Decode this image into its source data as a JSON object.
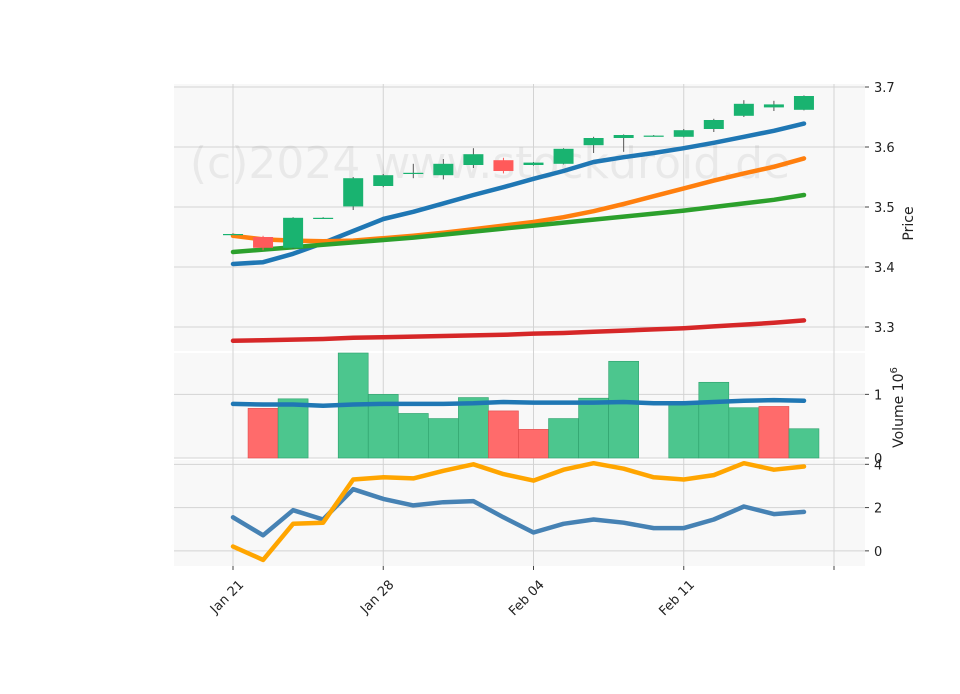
{
  "watermark": "(c)2024 www.stockdroid.de",
  "colors": {
    "up": "#19b370",
    "down": "#ff5a5a",
    "vol_up": "#4cc68e",
    "vol_down": "#ff6b6b",
    "panel_bg": "#f8f8f8",
    "grid": "#d3d3d3"
  },
  "chart_data": [
    {
      "type": "candlestick",
      "panel": "price",
      "ylabel": "Price",
      "ylim": [
        3.26,
        3.705
      ],
      "yticks": [
        "3.3",
        "3.4",
        "3.5",
        "3.6",
        "3.7"
      ],
      "grid": true,
      "x_tick_labels": [
        "Jan 21",
        "Jan 28",
        "Feb 04",
        "Feb 11"
      ],
      "x_tick_indices": [
        0,
        5,
        10,
        15
      ],
      "candles": [
        {
          "o": 3.455,
          "h": 3.456,
          "l": 3.454,
          "c": 3.455
        },
        {
          "o": 3.45,
          "h": 3.452,
          "l": 3.428,
          "c": 3.432
        },
        {
          "o": 3.432,
          "h": 3.483,
          "l": 3.43,
          "c": 3.482
        },
        {
          "o": 3.482,
          "h": 3.483,
          "l": 3.481,
          "c": 3.482
        },
        {
          "o": 3.501,
          "h": 3.55,
          "l": 3.495,
          "c": 3.548
        },
        {
          "o": 3.535,
          "h": 3.555,
          "l": 3.533,
          "c": 3.553
        },
        {
          "o": 3.555,
          "h": 3.572,
          "l": 3.548,
          "c": 3.557
        },
        {
          "o": 3.553,
          "h": 3.58,
          "l": 3.546,
          "c": 3.572
        },
        {
          "o": 3.57,
          "h": 3.598,
          "l": 3.565,
          "c": 3.588
        },
        {
          "o": 3.578,
          "h": 3.582,
          "l": 3.556,
          "c": 3.56
        },
        {
          "o": 3.57,
          "h": 3.575,
          "l": 3.569,
          "c": 3.574
        },
        {
          "o": 3.572,
          "h": 3.598,
          "l": 3.571,
          "c": 3.597
        },
        {
          "o": 3.603,
          "h": 3.617,
          "l": 3.59,
          "c": 3.615
        },
        {
          "o": 3.615,
          "h": 3.621,
          "l": 3.592,
          "c": 3.62
        },
        {
          "o": 3.619,
          "h": 3.62,
          "l": 3.618,
          "c": 3.619
        },
        {
          "o": 3.617,
          "h": 3.63,
          "l": 3.616,
          "c": 3.628
        },
        {
          "o": 3.63,
          "h": 3.647,
          "l": 3.625,
          "c": 3.645
        },
        {
          "o": 3.652,
          "h": 3.678,
          "l": 3.65,
          "c": 3.672
        },
        {
          "o": 3.666,
          "h": 3.677,
          "l": 3.66,
          "c": 3.671
        },
        {
          "o": 3.662,
          "h": 3.686,
          "l": 3.661,
          "c": 3.685
        }
      ],
      "overlays": [
        {
          "color": "#1f77b4",
          "values": [
            3.405,
            3.408,
            3.422,
            3.44,
            3.46,
            3.48,
            3.492,
            3.506,
            3.52,
            3.533,
            3.547,
            3.56,
            3.575,
            3.583,
            3.59,
            3.598,
            3.607,
            3.617,
            3.627,
            3.639
          ]
        },
        {
          "color": "#ff7f0e",
          "values": [
            3.452,
            3.446,
            3.444,
            3.443,
            3.444,
            3.448,
            3.452,
            3.457,
            3.463,
            3.469,
            3.475,
            3.483,
            3.493,
            3.505,
            3.518,
            3.531,
            3.544,
            3.556,
            3.567,
            3.581
          ]
        },
        {
          "color": "#2ca02c",
          "values": [
            3.425,
            3.429,
            3.433,
            3.437,
            3.441,
            3.445,
            3.449,
            3.454,
            3.459,
            3.464,
            3.469,
            3.474,
            3.479,
            3.484,
            3.489,
            3.494,
            3.5,
            3.506,
            3.512,
            3.52
          ]
        },
        {
          "color": "#d62728",
          "values": [
            3.277,
            3.278,
            3.279,
            3.28,
            3.282,
            3.283,
            3.284,
            3.285,
            3.286,
            3.287,
            3.289,
            3.29,
            3.292,
            3.294,
            3.296,
            3.298,
            3.301,
            3.304,
            3.307,
            3.311
          ]
        }
      ]
    },
    {
      "type": "bar",
      "panel": "volume",
      "ylabel": "Volume",
      "scale_note": "10^6",
      "ylim": [
        0,
        1.65
      ],
      "yticks": [
        "0",
        "1"
      ],
      "grid": true,
      "values": [
        0,
        0.78,
        0.93,
        0,
        1.65,
        1.0,
        0.7,
        0.62,
        0.95,
        0.74,
        0.45,
        0.62,
        0.94,
        1.52,
        0,
        0.85,
        1.19,
        0.79,
        0.81,
        0.46
      ],
      "direction": [
        "up",
        "down",
        "up",
        "up",
        "up",
        "up",
        "up",
        "up",
        "up",
        "down",
        "down",
        "up",
        "up",
        "up",
        "up",
        "up",
        "up",
        "up",
        "down",
        "up"
      ],
      "average": {
        "color": "#1f77b4",
        "values": [
          0.85,
          0.84,
          0.84,
          0.82,
          0.84,
          0.85,
          0.85,
          0.85,
          0.86,
          0.88,
          0.87,
          0.87,
          0.87,
          0.88,
          0.86,
          0.86,
          0.88,
          0.9,
          0.91,
          0.9
        ]
      }
    },
    {
      "type": "line",
      "panel": "indicator",
      "ylim": [
        -0.7,
        4.2
      ],
      "yticks": [
        "0",
        "2",
        "4"
      ],
      "grid": true,
      "series": [
        {
          "color": "#4682b4",
          "values": [
            1.55,
            0.72,
            1.88,
            1.45,
            2.85,
            2.4,
            2.1,
            2.25,
            2.3,
            1.55,
            0.85,
            1.25,
            1.45,
            1.3,
            1.05,
            1.05,
            1.45,
            2.05,
            1.7,
            1.8
          ]
        },
        {
          "color": "#ffa500",
          "values": [
            0.2,
            -0.42,
            1.25,
            1.3,
            3.3,
            3.4,
            3.35,
            3.7,
            4.0,
            3.55,
            3.25,
            3.75,
            4.05,
            3.8,
            3.4,
            3.3,
            3.5,
            4.05,
            3.75,
            3.9
          ]
        }
      ]
    }
  ]
}
